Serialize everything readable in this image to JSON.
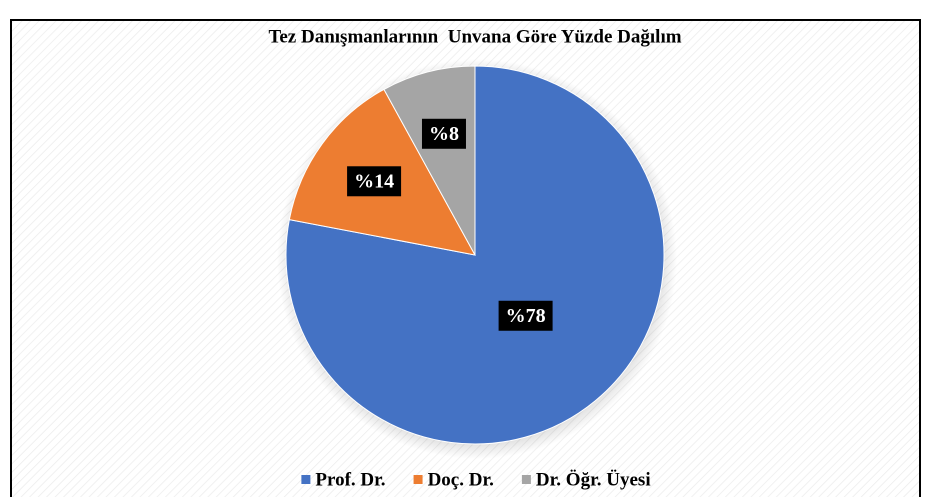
{
  "chart_data": {
    "type": "pie",
    "title": "Tez Danışmanlarının  Unvana Göre Yüzde Dağılım",
    "categories": [
      "Prof. Dr.",
      "Doç. Dr.",
      "Dr. Öğr. Üyesi"
    ],
    "values": [
      78,
      14,
      8
    ],
    "value_labels": [
      "%78",
      "%14",
      "%8"
    ],
    "colors": [
      "#4472c4",
      "#ed7d31",
      "#a5a5a5"
    ],
    "legend": "bottom"
  }
}
